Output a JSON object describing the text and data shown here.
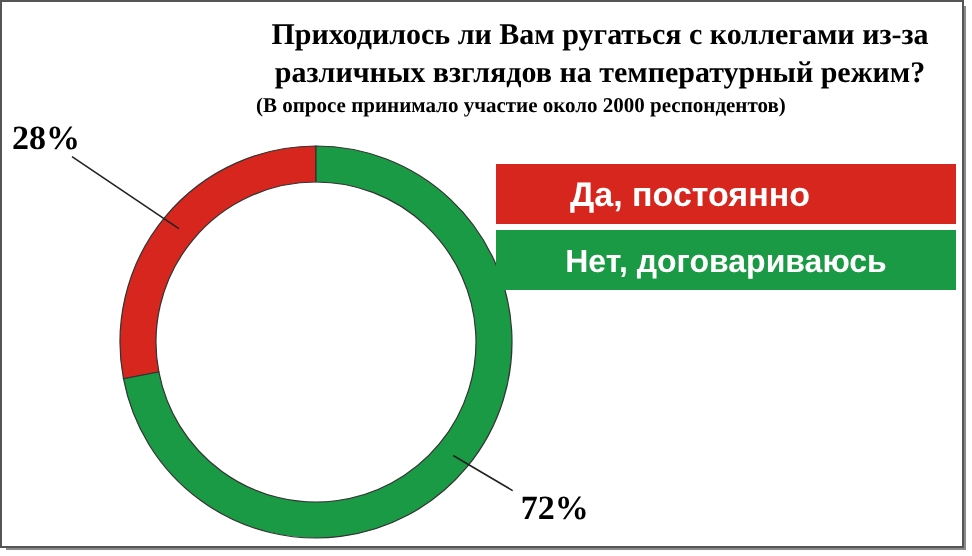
{
  "chart_data": {
    "type": "donut",
    "title": "Приходилось ли Вам ругаться с коллегами из-за различных взглядов на температурный режим?",
    "subtitle": "(В опросе принимало участие около 2000 респондентов)",
    "categories": [
      "Да, постоянно",
      "Нет, договариваюсь"
    ],
    "values": [
      28,
      72
    ],
    "colors": [
      "#d7261e",
      "#1b9a45"
    ],
    "value_labels": [
      "28%",
      "72%"
    ],
    "legend": "right"
  }
}
